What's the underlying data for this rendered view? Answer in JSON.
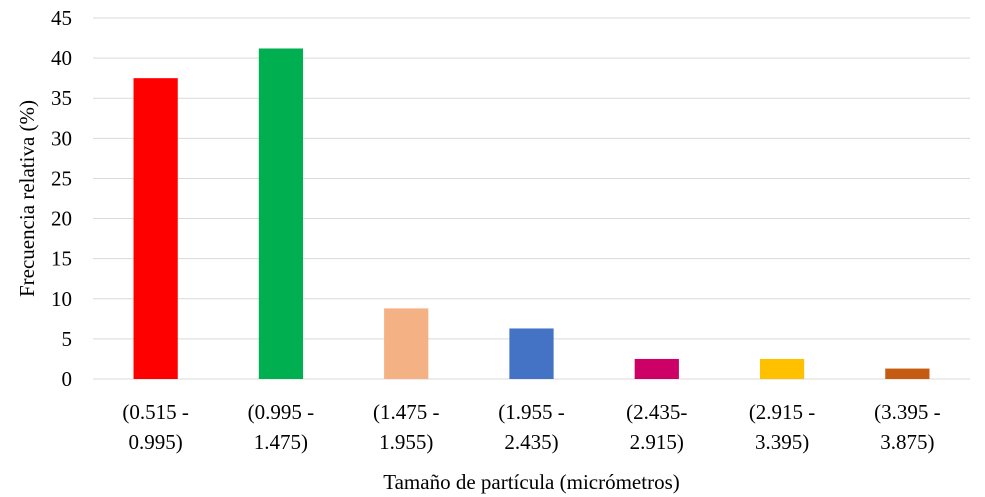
{
  "chart_data": {
    "type": "bar",
    "title": "",
    "xlabel": "Tamaño de partícula (micrómetros)",
    "ylabel": "Frecuencia relativa (%)",
    "ylim": [
      0,
      45
    ],
    "y_ticks": [
      0,
      5,
      10,
      15,
      20,
      25,
      30,
      35,
      40,
      45
    ],
    "grid": true,
    "legend": "none",
    "categories": [
      [
        "(0.515 -",
        "0.995)"
      ],
      [
        "(0.995 -",
        "1.475)"
      ],
      [
        "(1.475 -",
        "1.955)"
      ],
      [
        "(1.955 -",
        "2.435)"
      ],
      [
        "(2.435-",
        "2.915)"
      ],
      [
        "(2.915 -",
        "3.395)"
      ],
      [
        "(3.395 -",
        "3.875)"
      ]
    ],
    "values": [
      37.5,
      41.2,
      8.8,
      6.3,
      2.5,
      2.5,
      1.3
    ],
    "colors": [
      "#ff0000",
      "#00b050",
      "#f4b183",
      "#4472c4",
      "#cc0066",
      "#ffc000",
      "#c55a11"
    ]
  }
}
